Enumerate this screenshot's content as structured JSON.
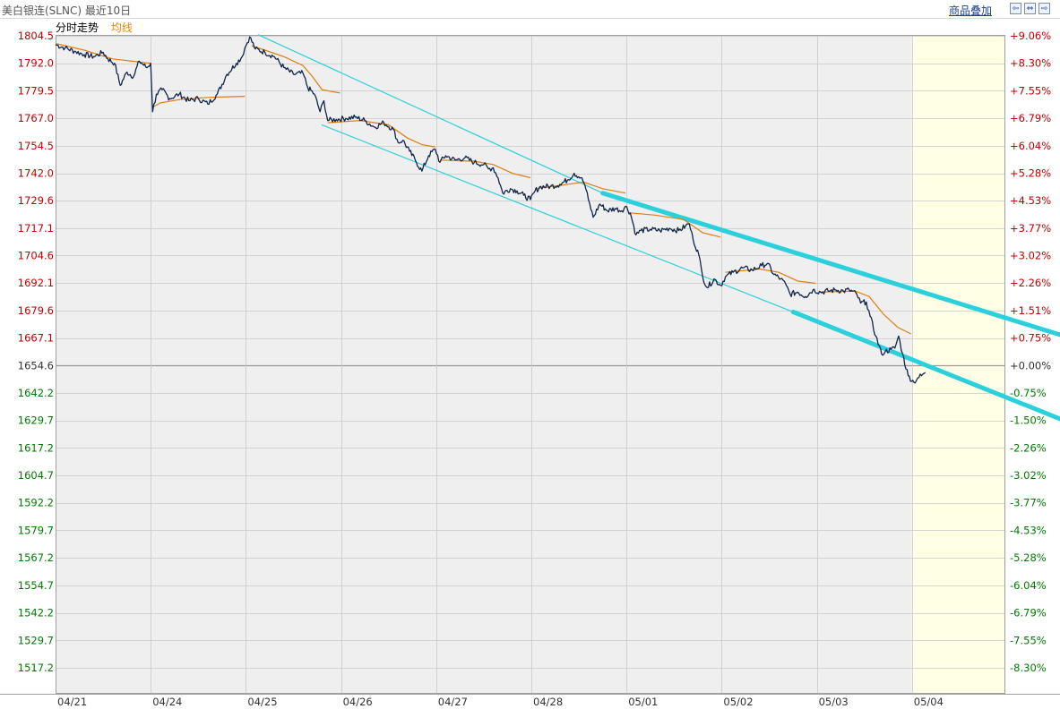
{
  "header": {
    "title": "美白银连(SLNC) 最近10日",
    "overlay_link": "商品叠加",
    "buttons": [
      {
        "name": "prev-button",
        "glyph": "⇦"
      },
      {
        "name": "fullscreen-button",
        "glyph": "⇔"
      },
      {
        "name": "next-button",
        "glyph": "⇨"
      }
    ]
  },
  "legend": {
    "time_label": "分时走势",
    "avg_label": "均线"
  },
  "colors": {
    "price_line": "#10264a",
    "avg_line": "#e07c10",
    "channel": "#2ad0dc",
    "up_text": "#c00000",
    "down_text": "#007a00",
    "neutral_text": "#333333",
    "grid": "#c8c8c8",
    "plot_bg": "#efefef",
    "future_bg": "#ffffe6"
  },
  "chart_data": {
    "type": "line",
    "base_price": 1654.6,
    "ylim": [
      1517.2,
      1804.5
    ],
    "x_ticks": [
      "04/21",
      "04/24",
      "04/25",
      "04/26",
      "04/27",
      "04/28",
      "05/01",
      "05/02",
      "05/03",
      "05/04"
    ],
    "y_ticks": [
      {
        "price": "1804.5",
        "pct": "+9.06%",
        "dir": "up"
      },
      {
        "price": "1792.0",
        "pct": "+8.30%",
        "dir": "up"
      },
      {
        "price": "1779.5",
        "pct": "+7.55%",
        "dir": "up"
      },
      {
        "price": "1767.0",
        "pct": "+6.79%",
        "dir": "up"
      },
      {
        "price": "1754.5",
        "pct": "+6.04%",
        "dir": "up"
      },
      {
        "price": "1742.0",
        "pct": "+5.28%",
        "dir": "up"
      },
      {
        "price": "1729.6",
        "pct": "+4.53%",
        "dir": "up"
      },
      {
        "price": "1717.1",
        "pct": "+3.77%",
        "dir": "up"
      },
      {
        "price": "1704.6",
        "pct": "+3.02%",
        "dir": "up"
      },
      {
        "price": "1692.1",
        "pct": "+2.26%",
        "dir": "up"
      },
      {
        "price": "1679.6",
        "pct": "+1.51%",
        "dir": "up"
      },
      {
        "price": "1667.1",
        "pct": "+0.75%",
        "dir": "up"
      },
      {
        "price": "1654.6",
        "pct": "+0.00%",
        "dir": "flat"
      },
      {
        "price": "1642.2",
        "pct": "-0.75%",
        "dir": "down"
      },
      {
        "price": "1629.7",
        "pct": "-1.50%",
        "dir": "down"
      },
      {
        "price": "1617.2",
        "pct": "-2.26%",
        "dir": "down"
      },
      {
        "price": "1604.7",
        "pct": "-3.02%",
        "dir": "down"
      },
      {
        "price": "1592.2",
        "pct": "-3.77%",
        "dir": "down"
      },
      {
        "price": "1579.7",
        "pct": "-4.53%",
        "dir": "down"
      },
      {
        "price": "1567.2",
        "pct": "-5.28%",
        "dir": "down"
      },
      {
        "price": "1554.7",
        "pct": "-6.04%",
        "dir": "down"
      },
      {
        "price": "1542.2",
        "pct": "-6.79%",
        "dir": "down"
      },
      {
        "price": "1529.7",
        "pct": "-7.55%",
        "dir": "down"
      },
      {
        "price": "1517.2",
        "pct": "-8.30%",
        "dir": "down"
      }
    ],
    "series": [
      {
        "key": "price",
        "points": [
          [
            0.0,
            1800.5
          ],
          [
            0.1,
            1799.0
          ],
          [
            0.2,
            1797.5
          ],
          [
            0.3,
            1796.0
          ],
          [
            0.4,
            1795.0
          ],
          [
            0.5,
            1797.0
          ],
          [
            0.55,
            1794.0
          ],
          [
            0.62,
            1792.0
          ],
          [
            0.68,
            1782.0
          ],
          [
            0.75,
            1788.0
          ],
          [
            0.82,
            1786.0
          ],
          [
            0.88,
            1793.0
          ],
          [
            0.96,
            1790.0
          ],
          [
            1.0,
            1792.0
          ],
          [
            1.02,
            1770.0
          ],
          [
            1.06,
            1778.0
          ],
          [
            1.12,
            1780.0
          ],
          [
            1.2,
            1776.0
          ],
          [
            1.3,
            1778.0
          ],
          [
            1.4,
            1775.0
          ],
          [
            1.5,
            1776.0
          ],
          [
            1.6,
            1773.5
          ],
          [
            1.7,
            1778.0
          ],
          [
            1.8,
            1787.0
          ],
          [
            1.9,
            1792.0
          ],
          [
            1.96,
            1795.0
          ],
          [
            1.99,
            1799.0
          ],
          [
            2.04,
            1804.0
          ],
          [
            2.1,
            1798.5
          ],
          [
            2.2,
            1797.0
          ],
          [
            2.3,
            1795.0
          ],
          [
            2.4,
            1790.0
          ],
          [
            2.5,
            1787.0
          ],
          [
            2.6,
            1787.5
          ],
          [
            2.65,
            1781.0
          ],
          [
            2.72,
            1778.0
          ],
          [
            2.78,
            1770.0
          ],
          [
            2.82,
            1775.0
          ],
          [
            2.86,
            1766.0
          ],
          [
            2.95,
            1766.5
          ],
          [
            3.05,
            1767.0
          ],
          [
            3.15,
            1767.5
          ],
          [
            3.25,
            1766.0
          ],
          [
            3.35,
            1763.0
          ],
          [
            3.45,
            1765.0
          ],
          [
            3.55,
            1762.0
          ],
          [
            3.6,
            1756.0
          ],
          [
            3.65,
            1757.0
          ],
          [
            3.72,
            1752.0
          ],
          [
            3.78,
            1748.0
          ],
          [
            3.85,
            1743.0
          ],
          [
            3.92,
            1750.0
          ],
          [
            3.99,
            1753.0
          ],
          [
            4.04,
            1747.0
          ],
          [
            4.1,
            1750.0
          ],
          [
            4.2,
            1748.0
          ],
          [
            4.3,
            1749.0
          ],
          [
            4.4,
            1747.0
          ],
          [
            4.5,
            1746.0
          ],
          [
            4.55,
            1744.0
          ],
          [
            4.6,
            1744.5
          ],
          [
            4.65,
            1740.0
          ],
          [
            4.7,
            1733.0
          ],
          [
            4.78,
            1735.0
          ],
          [
            4.85,
            1734.0
          ],
          [
            4.92,
            1732.0
          ],
          [
            4.99,
            1730.0
          ],
          [
            5.04,
            1734.0
          ],
          [
            5.1,
            1736.0
          ],
          [
            5.2,
            1736.0
          ],
          [
            5.3,
            1737.0
          ],
          [
            5.38,
            1739.0
          ],
          [
            5.45,
            1742.0
          ],
          [
            5.52,
            1740.0
          ],
          [
            5.56,
            1737.0
          ],
          [
            5.6,
            1730.0
          ],
          [
            5.65,
            1722.0
          ],
          [
            5.72,
            1728.0
          ],
          [
            5.8,
            1725.0
          ],
          [
            5.88,
            1726.0
          ],
          [
            5.95,
            1725.0
          ],
          [
            5.99,
            1727.0
          ],
          [
            6.04,
            1724.0
          ],
          [
            6.1,
            1714.0
          ],
          [
            6.15,
            1716.0
          ],
          [
            6.25,
            1716.5
          ],
          [
            6.35,
            1716.0
          ],
          [
            6.45,
            1717.0
          ],
          [
            6.55,
            1716.0
          ],
          [
            6.62,
            1718.0
          ],
          [
            6.66,
            1719.0
          ],
          [
            6.7,
            1712.0
          ],
          [
            6.76,
            1705.0
          ],
          [
            6.8,
            1695.0
          ],
          [
            6.85,
            1690.0
          ],
          [
            6.92,
            1694.0
          ],
          [
            6.99,
            1691.0
          ],
          [
            7.04,
            1695.0
          ],
          [
            7.12,
            1697.0
          ],
          [
            7.22,
            1699.0
          ],
          [
            7.32,
            1698.0
          ],
          [
            7.42,
            1700.0
          ],
          [
            7.48,
            1701.0
          ],
          [
            7.55,
            1696.0
          ],
          [
            7.62,
            1694.0
          ],
          [
            7.68,
            1691.0
          ],
          [
            7.72,
            1687.0
          ],
          [
            7.8,
            1688.0
          ],
          [
            7.88,
            1686.0
          ],
          [
            7.96,
            1689.0
          ],
          [
            8.04,
            1688.0
          ],
          [
            8.12,
            1688.5
          ],
          [
            8.2,
            1689.0
          ],
          [
            8.28,
            1688.5
          ],
          [
            8.34,
            1689.0
          ],
          [
            8.42,
            1687.0
          ],
          [
            8.46,
            1683.0
          ],
          [
            8.52,
            1683.5
          ],
          [
            8.56,
            1677.0
          ],
          [
            8.62,
            1668.0
          ],
          [
            8.68,
            1660.0
          ],
          [
            8.72,
            1661.0
          ],
          [
            8.78,
            1662.0
          ],
          [
            8.82,
            1662.5
          ],
          [
            8.86,
            1668.0
          ],
          [
            8.9,
            1660.0
          ],
          [
            8.96,
            1650.0
          ],
          [
            9.02,
            1647.0
          ],
          [
            9.06,
            1649.0
          ],
          [
            9.1,
            1650.0
          ],
          [
            9.14,
            1651.5
          ]
        ]
      },
      {
        "key": "avg",
        "segments": [
          [
            [
              0.0,
              1801.0
            ],
            [
              0.3,
              1798.0
            ],
            [
              0.6,
              1794.0
            ],
            [
              0.9,
              1792.5
            ],
            [
              1.0,
              1792.0
            ]
          ],
          [
            [
              1.02,
              1772.0
            ],
            [
              1.1,
              1774.0
            ],
            [
              1.3,
              1775.5
            ],
            [
              1.6,
              1776.5
            ],
            [
              1.99,
              1777.0
            ]
          ],
          [
            [
              2.06,
              1800.0
            ],
            [
              2.2,
              1798.0
            ],
            [
              2.4,
              1795.0
            ],
            [
              2.6,
              1791.0
            ],
            [
              2.7,
              1786.0
            ],
            [
              2.8,
              1780.0
            ],
            [
              2.99,
              1778.5
            ]
          ],
          [
            [
              2.86,
              1765.0
            ],
            [
              3.2,
              1766.0
            ],
            [
              3.5,
              1764.0
            ],
            [
              3.7,
              1758.0
            ],
            [
              3.85,
              1755.0
            ],
            [
              3.99,
              1754.0
            ]
          ],
          [
            [
              4.04,
              1748.0
            ],
            [
              4.4,
              1747.5
            ],
            [
              4.6,
              1746.0
            ],
            [
              4.8,
              1742.0
            ],
            [
              4.99,
              1740.0
            ]
          ],
          [
            [
              5.04,
              1735.0
            ],
            [
              5.3,
              1736.5
            ],
            [
              5.55,
              1738.0
            ],
            [
              5.75,
              1735.0
            ],
            [
              5.99,
              1733.0
            ]
          ],
          [
            [
              6.04,
              1724.0
            ],
            [
              6.3,
              1723.0
            ],
            [
              6.6,
              1721.0
            ],
            [
              6.8,
              1715.0
            ],
            [
              6.99,
              1713.0
            ]
          ],
          [
            [
              7.04,
              1697.0
            ],
            [
              7.4,
              1698.5
            ],
            [
              7.6,
              1697.0
            ],
            [
              7.8,
              1693.0
            ],
            [
              7.99,
              1692.0
            ]
          ],
          [
            [
              8.04,
              1688.0
            ],
            [
              8.4,
              1688.5
            ],
            [
              8.55,
              1686.0
            ],
            [
              8.7,
              1678.0
            ],
            [
              8.85,
              1672.0
            ],
            [
              8.99,
              1669.0
            ]
          ]
        ]
      }
    ],
    "channels": [
      {
        "from": [
          2.13,
          1805.0
        ],
        "to": [
          5.75,
          1733.0
        ],
        "width": 1.2
      },
      {
        "from": [
          5.75,
          1733.0
        ],
        "to": [
          10.75,
          1666.0
        ],
        "width": 5
      },
      {
        "from": [
          2.8,
          1764.0
        ],
        "to": [
          7.75,
          1679.0
        ],
        "width": 1.2
      },
      {
        "from": [
          7.75,
          1679.0
        ],
        "to": [
          10.75,
          1627.0
        ],
        "width": 5
      }
    ]
  }
}
